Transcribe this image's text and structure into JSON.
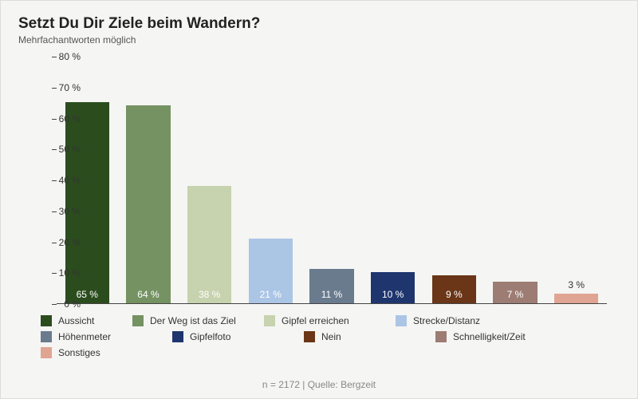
{
  "chart": {
    "type": "bar",
    "title": "Setzt Du Dir Ziele beim Wandern?",
    "subtitle": "Mehrfachantworten möglich",
    "title_fontsize": 19,
    "subtitle_fontsize": 12,
    "background_color": "#f5f5f3",
    "border_color": "#dcdcdc",
    "axis_color": "#444444",
    "text_color": "#333333",
    "ylim": [
      0,
      80
    ],
    "ytick_step": 10,
    "y_suffix": " %",
    "bar_width_ratio": 0.72,
    "data": [
      {
        "label": "Aussicht",
        "value": 65,
        "color": "#2b4d1e",
        "value_label": "65 %",
        "label_inside": true
      },
      {
        "label": "Der Weg ist das Ziel",
        "value": 64,
        "color": "#759262",
        "value_label": "64 %",
        "label_inside": true
      },
      {
        "label": "Gipfel erreichen",
        "value": 38,
        "color": "#c7d2ae",
        "value_label": "38 %",
        "label_inside": true
      },
      {
        "label": "Strecke/Distanz",
        "value": 21,
        "color": "#abc5e5",
        "value_label": "21 %",
        "label_inside": true
      },
      {
        "label": "Höhenmeter",
        "value": 11,
        "color": "#6a7b8e",
        "value_label": "11 %",
        "label_inside": true
      },
      {
        "label": "Gipfelfoto",
        "value": 10,
        "color": "#1e356e",
        "value_label": "10 %",
        "label_inside": true
      },
      {
        "label": "Nein",
        "value": 9,
        "color": "#6a3617",
        "value_label": "9 %",
        "label_inside": true
      },
      {
        "label": "Schnelligkeit/Zeit",
        "value": 7,
        "color": "#9c7c73",
        "value_label": "7 %",
        "label_inside": true
      },
      {
        "label": "Sonstiges",
        "value": 3,
        "color": "#e0a493",
        "value_label": "3 %",
        "label_inside": false
      }
    ],
    "footer": "n = 2172 | Quelle: Bergzeit",
    "legend_fontsize": 12,
    "footer_fontsize": 12,
    "footer_color": "#888888"
  }
}
